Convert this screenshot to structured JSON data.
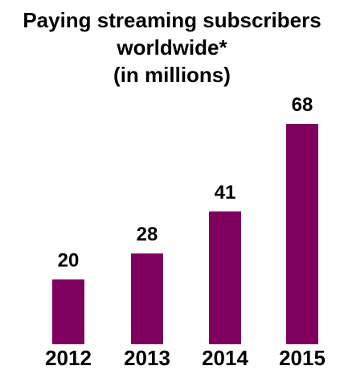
{
  "chart_data": {
    "type": "bar",
    "title_lines": [
      "Paying streaming subscribers",
      "worldwide*",
      "(in millions)"
    ],
    "categories": [
      "2012",
      "2013",
      "2014",
      "2015"
    ],
    "values": [
      20,
      28,
      41,
      68
    ],
    "data_labels": [
      "20",
      "28",
      "41",
      "68"
    ],
    "ylim": [
      0,
      68
    ],
    "grid": false,
    "legend": "none",
    "colors": {
      "bar": "#800060",
      "text": "#000000",
      "background": "#ffffff"
    }
  }
}
